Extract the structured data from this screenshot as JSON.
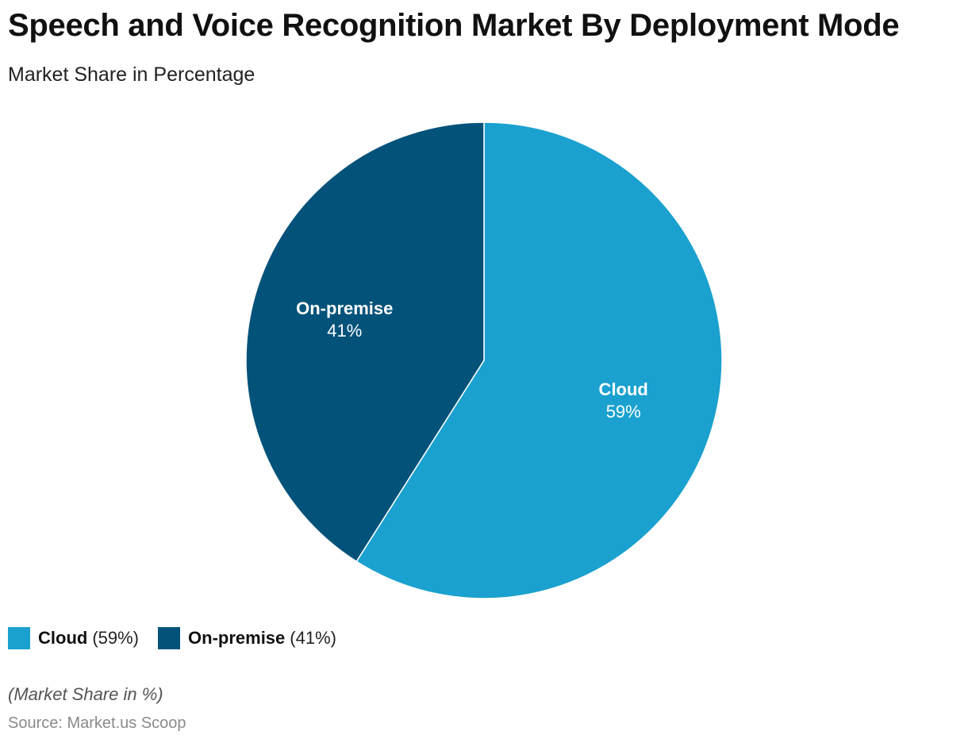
{
  "title": "Speech and Voice Recognition Market By Deployment Mode",
  "subtitle": "Market Share in Percentage",
  "note": "(Market Share in %)",
  "source": "Source: Market.us Scoop",
  "colors": {
    "cloud": "#1aa1cf",
    "on_premise": "#03527a"
  },
  "legend": [
    {
      "name": "Cloud",
      "pct": "(59%)"
    },
    {
      "name": "On-premise",
      "pct": "(41%)"
    }
  ],
  "slice_labels": [
    {
      "name": "Cloud",
      "pct": "59%"
    },
    {
      "name": "On-premise",
      "pct": "41%"
    }
  ],
  "chart_data": {
    "type": "pie",
    "categories": [
      "Cloud",
      "On-premise"
    ],
    "values": [
      59,
      41
    ],
    "unit": "%",
    "title": "Speech and Voice Recognition Market By Deployment Mode",
    "subtitle": "Market Share in Percentage",
    "legend_position": "bottom-left"
  }
}
